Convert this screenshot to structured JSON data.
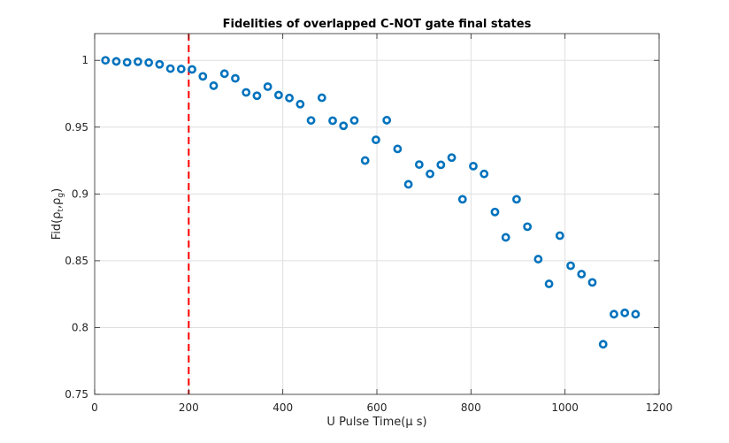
{
  "chart_data": {
    "type": "scatter",
    "title": "Fidelities of overlapped C-NOT gate final states",
    "xlabel": "U Pulse Time(μ s)",
    "ylabel": {
      "prefix": "Fid(",
      "rho": "ρ",
      "sub_t": "t",
      "comma": ",",
      "sub_g": "g",
      "suffix": ")"
    },
    "xlim": [
      0,
      1200
    ],
    "ylim": [
      0.75,
      1.02
    ],
    "xticks": [
      0,
      200,
      400,
      600,
      800,
      1000,
      1200
    ],
    "yticks": [
      0.75,
      0.8,
      0.85,
      0.9,
      0.95,
      1
    ],
    "xtick_labels": [
      "0",
      "200",
      "400",
      "600",
      "800",
      "1000",
      "1200"
    ],
    "ytick_labels": [
      "0.75",
      "0.8",
      "0.85",
      "0.9",
      "0.95",
      "1"
    ],
    "grid": true,
    "marker_color": "#0072BD",
    "vline": {
      "x": 200,
      "color": "#FF0000",
      "style": "dashed"
    },
    "points": [
      [
        23,
        1.0
      ],
      [
        46,
        0.9992
      ],
      [
        69,
        0.9985
      ],
      [
        92,
        0.999
      ],
      [
        115,
        0.9983
      ],
      [
        138,
        0.997
      ],
      [
        161,
        0.9938
      ],
      [
        184,
        0.9935
      ],
      [
        207,
        0.9932
      ],
      [
        230,
        0.988
      ],
      [
        253,
        0.981
      ],
      [
        276,
        0.99
      ],
      [
        299,
        0.9865
      ],
      [
        322,
        0.976
      ],
      [
        345,
        0.9735
      ],
      [
        368,
        0.9803
      ],
      [
        391,
        0.974
      ],
      [
        414,
        0.9718
      ],
      [
        437,
        0.9672
      ],
      [
        460,
        0.955
      ],
      [
        483,
        0.972
      ],
      [
        506,
        0.9548
      ],
      [
        529,
        0.951
      ],
      [
        552,
        0.955
      ],
      [
        575,
        0.925
      ],
      [
        598,
        0.9405
      ],
      [
        621,
        0.9552
      ],
      [
        644,
        0.9337
      ],
      [
        667,
        0.9072
      ],
      [
        690,
        0.922
      ],
      [
        713,
        0.915
      ],
      [
        736,
        0.9218
      ],
      [
        759,
        0.9272
      ],
      [
        782,
        0.896
      ],
      [
        805,
        0.9208
      ],
      [
        828,
        0.915
      ],
      [
        851,
        0.8865
      ],
      [
        874,
        0.8675
      ],
      [
        897,
        0.896
      ],
      [
        920,
        0.8755
      ],
      [
        943,
        0.8512
      ],
      [
        966,
        0.8327
      ],
      [
        989,
        0.8688
      ],
      [
        1012,
        0.8463
      ],
      [
        1035,
        0.84
      ],
      [
        1058,
        0.8338
      ],
      [
        1081,
        0.7875
      ],
      [
        1104,
        0.81
      ],
      [
        1127,
        0.811
      ],
      [
        1150,
        0.81
      ]
    ]
  }
}
